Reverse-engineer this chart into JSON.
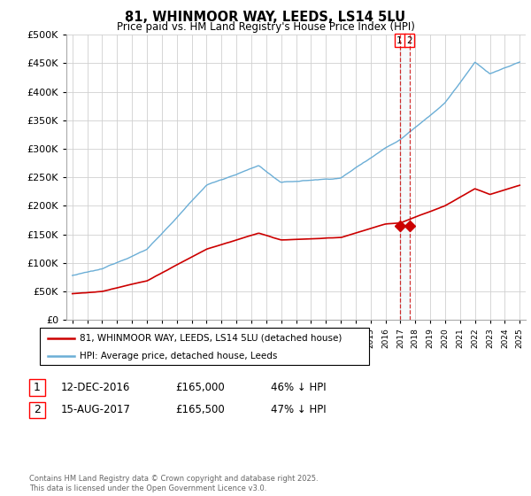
{
  "title": "81, WHINMOOR WAY, LEEDS, LS14 5LU",
  "subtitle": "Price paid vs. HM Land Registry's House Price Index (HPI)",
  "legend_line1": "81, WHINMOOR WAY, LEEDS, LS14 5LU (detached house)",
  "legend_line2": "HPI: Average price, detached house, Leeds",
  "annotation1": {
    "label": "1",
    "date_str": "12-DEC-2016",
    "price_str": "£165,000",
    "pct_str": "46% ↓ HPI"
  },
  "annotation2": {
    "label": "2",
    "date_str": "15-AUG-2017",
    "price_str": "£165,500",
    "pct_str": "47% ↓ HPI"
  },
  "footer": "Contains HM Land Registry data © Crown copyright and database right 2025.\nThis data is licensed under the Open Government Licence v3.0.",
  "hpi_color": "#6baed6",
  "price_color": "#cc0000",
  "vline_color": "#cc0000",
  "dot_color": "#cc0000",
  "ylim": [
    0,
    500000
  ],
  "yticks": [
    0,
    50000,
    100000,
    150000,
    200000,
    250000,
    300000,
    350000,
    400000,
    450000,
    500000
  ],
  "sale1_x": 2016.95,
  "sale1_y": 165000,
  "sale2_x": 2017.6,
  "sale2_y": 165500,
  "xmin": 1995,
  "xmax": 2025
}
